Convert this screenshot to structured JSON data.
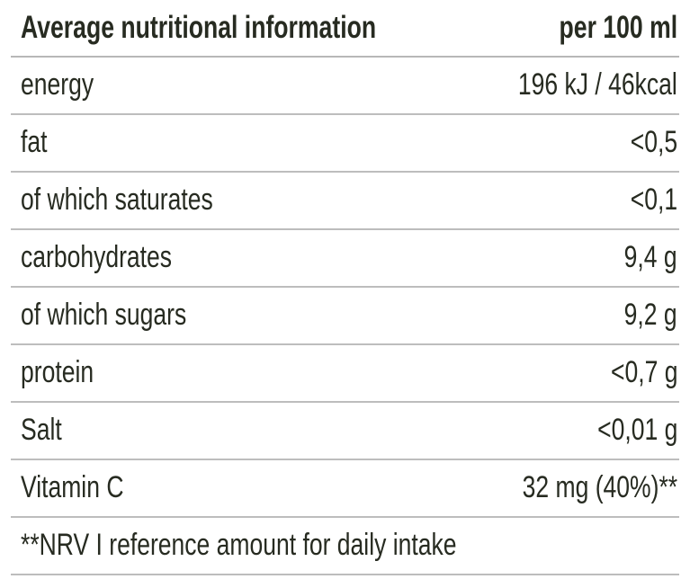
{
  "table": {
    "header": {
      "label": "Average nutritional information",
      "unit": "per 100 ml"
    },
    "rows": [
      {
        "label": "energy",
        "value": "196 kJ / 46kcal"
      },
      {
        "label": "fat",
        "value": "<0,5"
      },
      {
        "label": "of which saturates",
        "value": "<0,1"
      },
      {
        "label": "carbohydrates",
        "value": "9,4 g"
      },
      {
        "label": "of which sugars",
        "value": "9,2 g"
      },
      {
        "label": "protein",
        "value": "<0,7 g"
      },
      {
        "label": "Salt",
        "value": "<0,01 g"
      },
      {
        "label": "Vitamin C",
        "value": "32 mg (40%)**"
      }
    ],
    "footnote": "**NRV I reference amount for daily intake"
  },
  "colors": {
    "text": "#272b21",
    "divider": "#bdbdbd",
    "background": "#ffffff"
  }
}
